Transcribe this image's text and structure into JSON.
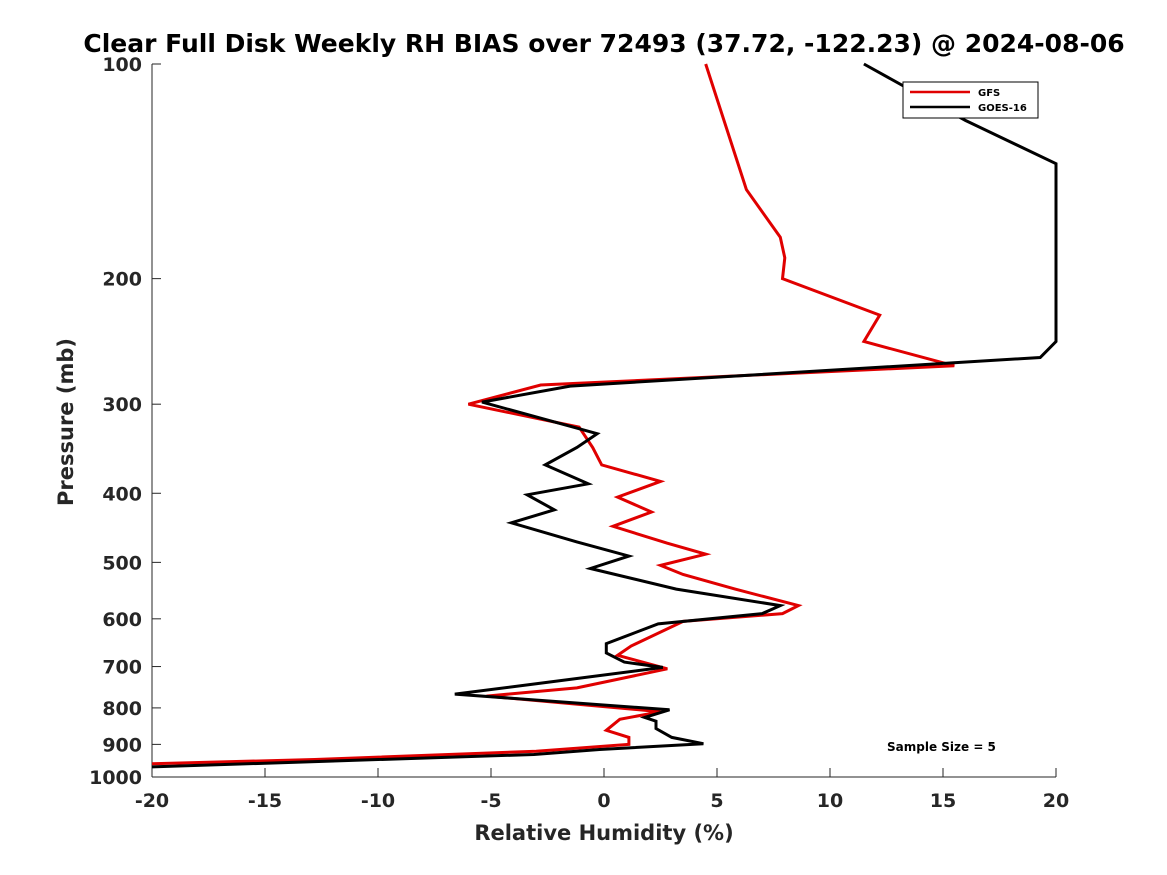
{
  "chart_data": {
    "type": "line",
    "title": "Clear Full Disk Weekly RH BIAS over 72493 (37.72, -122.23) @ 2024-08-06",
    "xlabel": "Relative Humidity (%)",
    "ylabel": "Pressure (mb)",
    "xlim": [
      -20,
      20
    ],
    "ylim": [
      100,
      1000
    ],
    "y_scale": "log",
    "y_reversed": true,
    "x_ticks": [
      "-20",
      "-15",
      "-10",
      "-5",
      "0",
      "5",
      "10",
      "15",
      "20"
    ],
    "y_ticks": [
      "100",
      "200",
      "300",
      "400",
      "500",
      "600",
      "700",
      "800",
      "900",
      "1000"
    ],
    "grid": false,
    "legend_position": "top-right",
    "annotation": "Sample Size = 5",
    "series": [
      {
        "name": "GFS",
        "color": "#e00000",
        "points": [
          [
            4.5,
            100
          ],
          [
            6.3,
            150
          ],
          [
            7.8,
            175
          ],
          [
            8.0,
            187
          ],
          [
            7.9,
            200
          ],
          [
            12.2,
            225
          ],
          [
            11.5,
            245
          ],
          [
            15.5,
            265
          ],
          [
            -2.8,
            282
          ],
          [
            -6.0,
            300
          ],
          [
            -1.1,
            323
          ],
          [
            -0.5,
            345
          ],
          [
            -0.1,
            365
          ],
          [
            2.5,
            385
          ],
          [
            0.6,
            405
          ],
          [
            2.1,
            425
          ],
          [
            0.4,
            445
          ],
          [
            2.8,
            470
          ],
          [
            4.5,
            487
          ],
          [
            2.5,
            505
          ],
          [
            3.5,
            520
          ],
          [
            5.8,
            545
          ],
          [
            8.6,
            575
          ],
          [
            7.9,
            590
          ],
          [
            3.5,
            605
          ],
          [
            1.2,
            655
          ],
          [
            0.6,
            675
          ],
          [
            2.8,
            705
          ],
          [
            -1.2,
            750
          ],
          [
            -5.2,
            770
          ],
          [
            2.5,
            810
          ],
          [
            0.7,
            830
          ],
          [
            0.1,
            860
          ],
          [
            1.1,
            880
          ],
          [
            1.1,
            900
          ],
          [
            -3.0,
            920
          ],
          [
            -12.8,
            945
          ],
          [
            -20.0,
            958
          ]
        ]
      },
      {
        "name": "GOES-16",
        "color": "#000000",
        "points": [
          [
            11.5,
            100
          ],
          [
            16.0,
            120
          ],
          [
            20.0,
            138
          ],
          [
            20.0,
            245
          ],
          [
            19.3,
            258
          ],
          [
            -1.5,
            283
          ],
          [
            -5.4,
            298
          ],
          [
            -0.3,
            330
          ],
          [
            -1.2,
            345
          ],
          [
            -2.6,
            365
          ],
          [
            -0.7,
            388
          ],
          [
            -3.4,
            402
          ],
          [
            -2.2,
            422
          ],
          [
            -4.1,
            440
          ],
          [
            -1.2,
            468
          ],
          [
            1.1,
            490
          ],
          [
            -0.6,
            510
          ],
          [
            3.2,
            545
          ],
          [
            7.8,
            575
          ],
          [
            7.0,
            590
          ],
          [
            2.4,
            610
          ],
          [
            0.1,
            650
          ],
          [
            0.1,
            670
          ],
          [
            0.9,
            690
          ],
          [
            2.6,
            702
          ],
          [
            -3.0,
            740
          ],
          [
            -6.6,
            765
          ],
          [
            2.9,
            805
          ],
          [
            1.8,
            825
          ],
          [
            2.3,
            835
          ],
          [
            2.3,
            855
          ],
          [
            3.0,
            880
          ],
          [
            4.4,
            898
          ],
          [
            -0.2,
            915
          ],
          [
            -3.1,
            930
          ],
          [
            -20.0,
            968
          ]
        ]
      }
    ]
  }
}
